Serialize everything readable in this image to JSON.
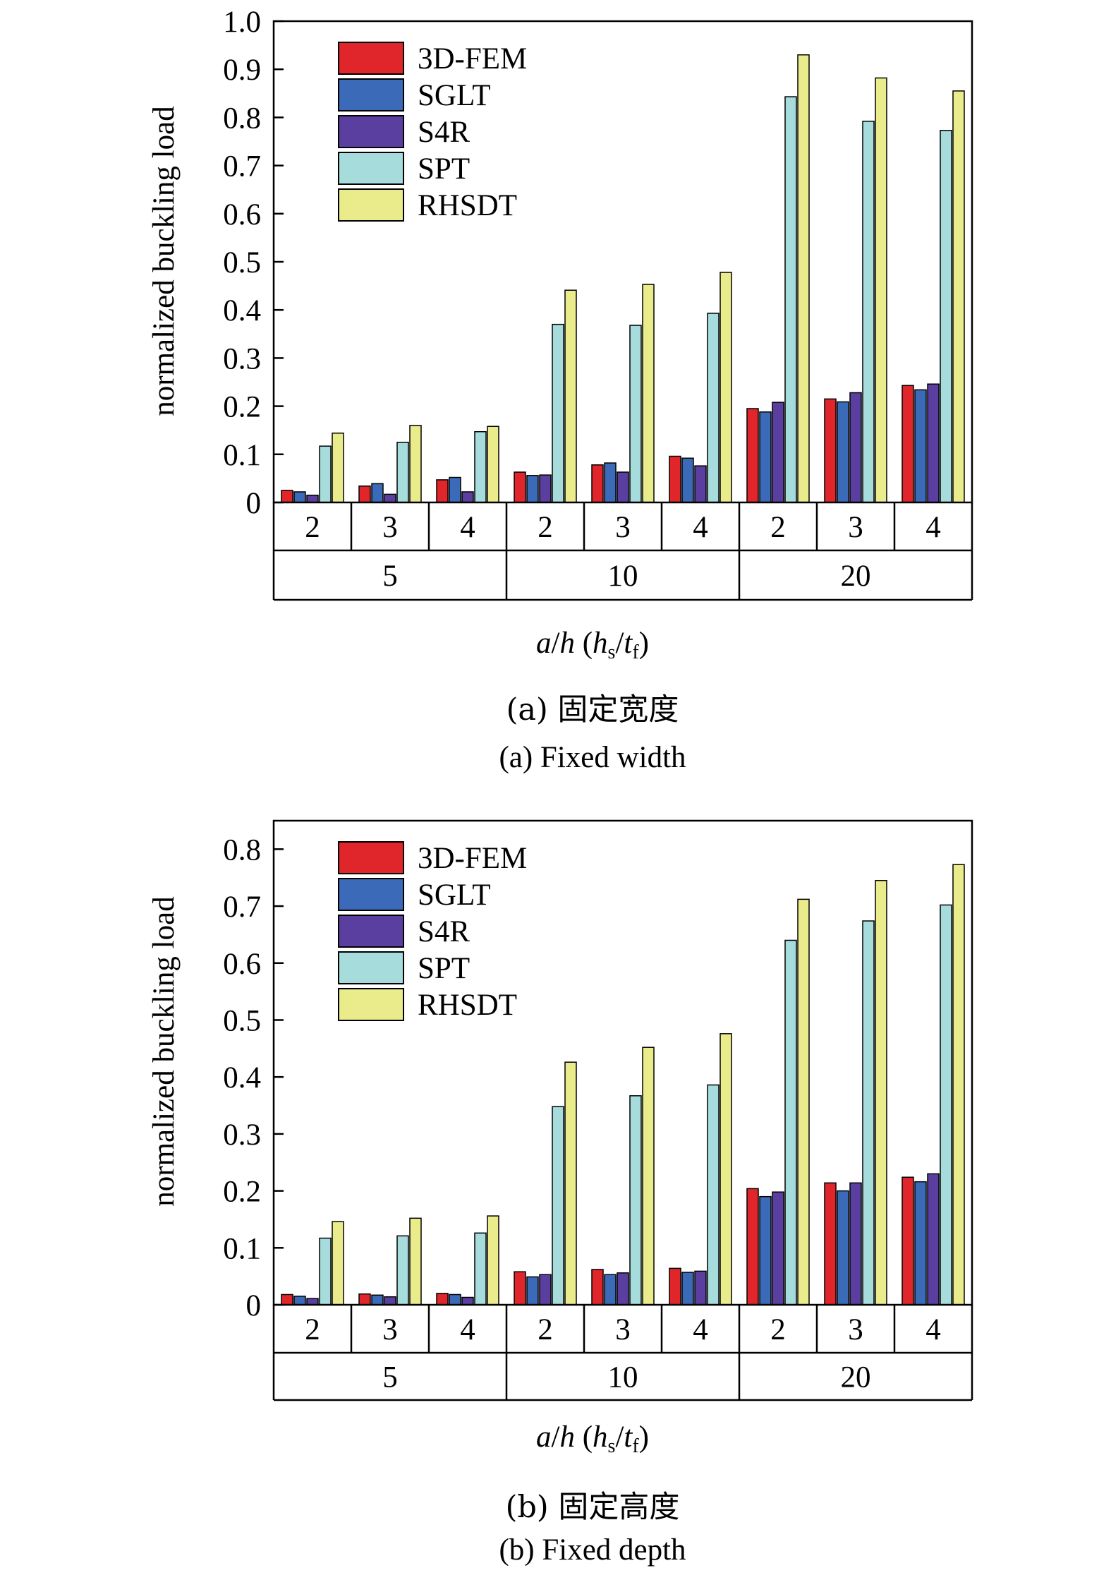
{
  "colors": {
    "3D-FEM": "#e0262b",
    "SGLT": "#3b6ab8",
    "S4R": "#5b3fa0",
    "SPT": "#a6dcdc",
    "RHSDT": "#eaec8c"
  },
  "chart_data": [
    {
      "type": "bar",
      "subplot": "a",
      "ylabel": "normalized buckling load",
      "xlabel": {
        "a": "a",
        "h": "h",
        "hs": "h",
        "s": "s",
        "t": "t",
        "f": "f"
      },
      "ylim": [
        0,
        1.0
      ],
      "yticks": [
        "0",
        "0.1",
        "0.2",
        "0.3",
        "0.4",
        "0.5",
        "0.6",
        "0.7",
        "0.8",
        "0.9",
        "1.0"
      ],
      "ytick_values": [
        0,
        0.1,
        0.2,
        0.3,
        0.4,
        0.5,
        0.6,
        0.7,
        0.8,
        0.9,
        1.0
      ],
      "categories": [
        "2",
        "3",
        "4",
        "2",
        "3",
        "4",
        "2",
        "3",
        "4"
      ],
      "groups": [
        {
          "label": "5",
          "span": [
            0,
            2
          ]
        },
        {
          "label": "10",
          "span": [
            3,
            5
          ]
        },
        {
          "label": "20",
          "span": [
            6,
            8
          ]
        }
      ],
      "legend_position": "top-left",
      "series": [
        {
          "name": "3D-FEM",
          "values": [
            0.025,
            0.034,
            0.047,
            0.063,
            0.078,
            0.096,
            0.195,
            0.215,
            0.243
          ]
        },
        {
          "name": "SGLT",
          "values": [
            0.022,
            0.039,
            0.052,
            0.056,
            0.082,
            0.092,
            0.188,
            0.209,
            0.234
          ]
        },
        {
          "name": "S4R",
          "values": [
            0.015,
            0.017,
            0.022,
            0.057,
            0.063,
            0.076,
            0.208,
            0.228,
            0.246
          ]
        },
        {
          "name": "SPT",
          "values": [
            0.117,
            0.125,
            0.147,
            0.37,
            0.368,
            0.393,
            0.843,
            0.792,
            0.773
          ]
        },
        {
          "name": "RHSDT",
          "values": [
            0.144,
            0.16,
            0.158,
            0.441,
            0.453,
            0.478,
            0.93,
            0.882,
            0.855
          ]
        }
      ],
      "caption_cn": "(a) 固定宽度",
      "caption_en": "(a) Fixed width"
    },
    {
      "type": "bar",
      "subplot": "b",
      "ylabel": "normalized buckling load",
      "xlabel": {
        "a": "a",
        "h": "h",
        "hs": "h",
        "s": "s",
        "t": "t",
        "f": "f"
      },
      "ylim": [
        0,
        0.85
      ],
      "yticks": [
        "0",
        "0.1",
        "0.2",
        "0.3",
        "0.4",
        "0.5",
        "0.6",
        "0.7",
        "0.8"
      ],
      "ytick_values": [
        0,
        0.1,
        0.2,
        0.3,
        0.4,
        0.5,
        0.6,
        0.7,
        0.8
      ],
      "categories": [
        "2",
        "3",
        "4",
        "2",
        "3",
        "4",
        "2",
        "3",
        "4"
      ],
      "groups": [
        {
          "label": "5",
          "span": [
            0,
            2
          ]
        },
        {
          "label": "10",
          "span": [
            3,
            5
          ]
        },
        {
          "label": "20",
          "span": [
            6,
            8
          ]
        }
      ],
      "legend_position": "top-left",
      "series": [
        {
          "name": "3D-FEM",
          "values": [
            0.018,
            0.019,
            0.02,
            0.058,
            0.062,
            0.064,
            0.204,
            0.214,
            0.224
          ]
        },
        {
          "name": "SGLT",
          "values": [
            0.015,
            0.017,
            0.018,
            0.049,
            0.053,
            0.057,
            0.19,
            0.2,
            0.216
          ]
        },
        {
          "name": "S4R",
          "values": [
            0.011,
            0.014,
            0.013,
            0.053,
            0.056,
            0.059,
            0.198,
            0.214,
            0.23
          ]
        },
        {
          "name": "SPT",
          "values": [
            0.117,
            0.121,
            0.126,
            0.348,
            0.367,
            0.386,
            0.64,
            0.674,
            0.702
          ]
        },
        {
          "name": "RHSDT",
          "values": [
            0.146,
            0.152,
            0.156,
            0.426,
            0.452,
            0.476,
            0.712,
            0.745,
            0.773
          ]
        }
      ],
      "caption_cn": "(b) 固定高度",
      "caption_en": "(b) Fixed depth"
    }
  ]
}
